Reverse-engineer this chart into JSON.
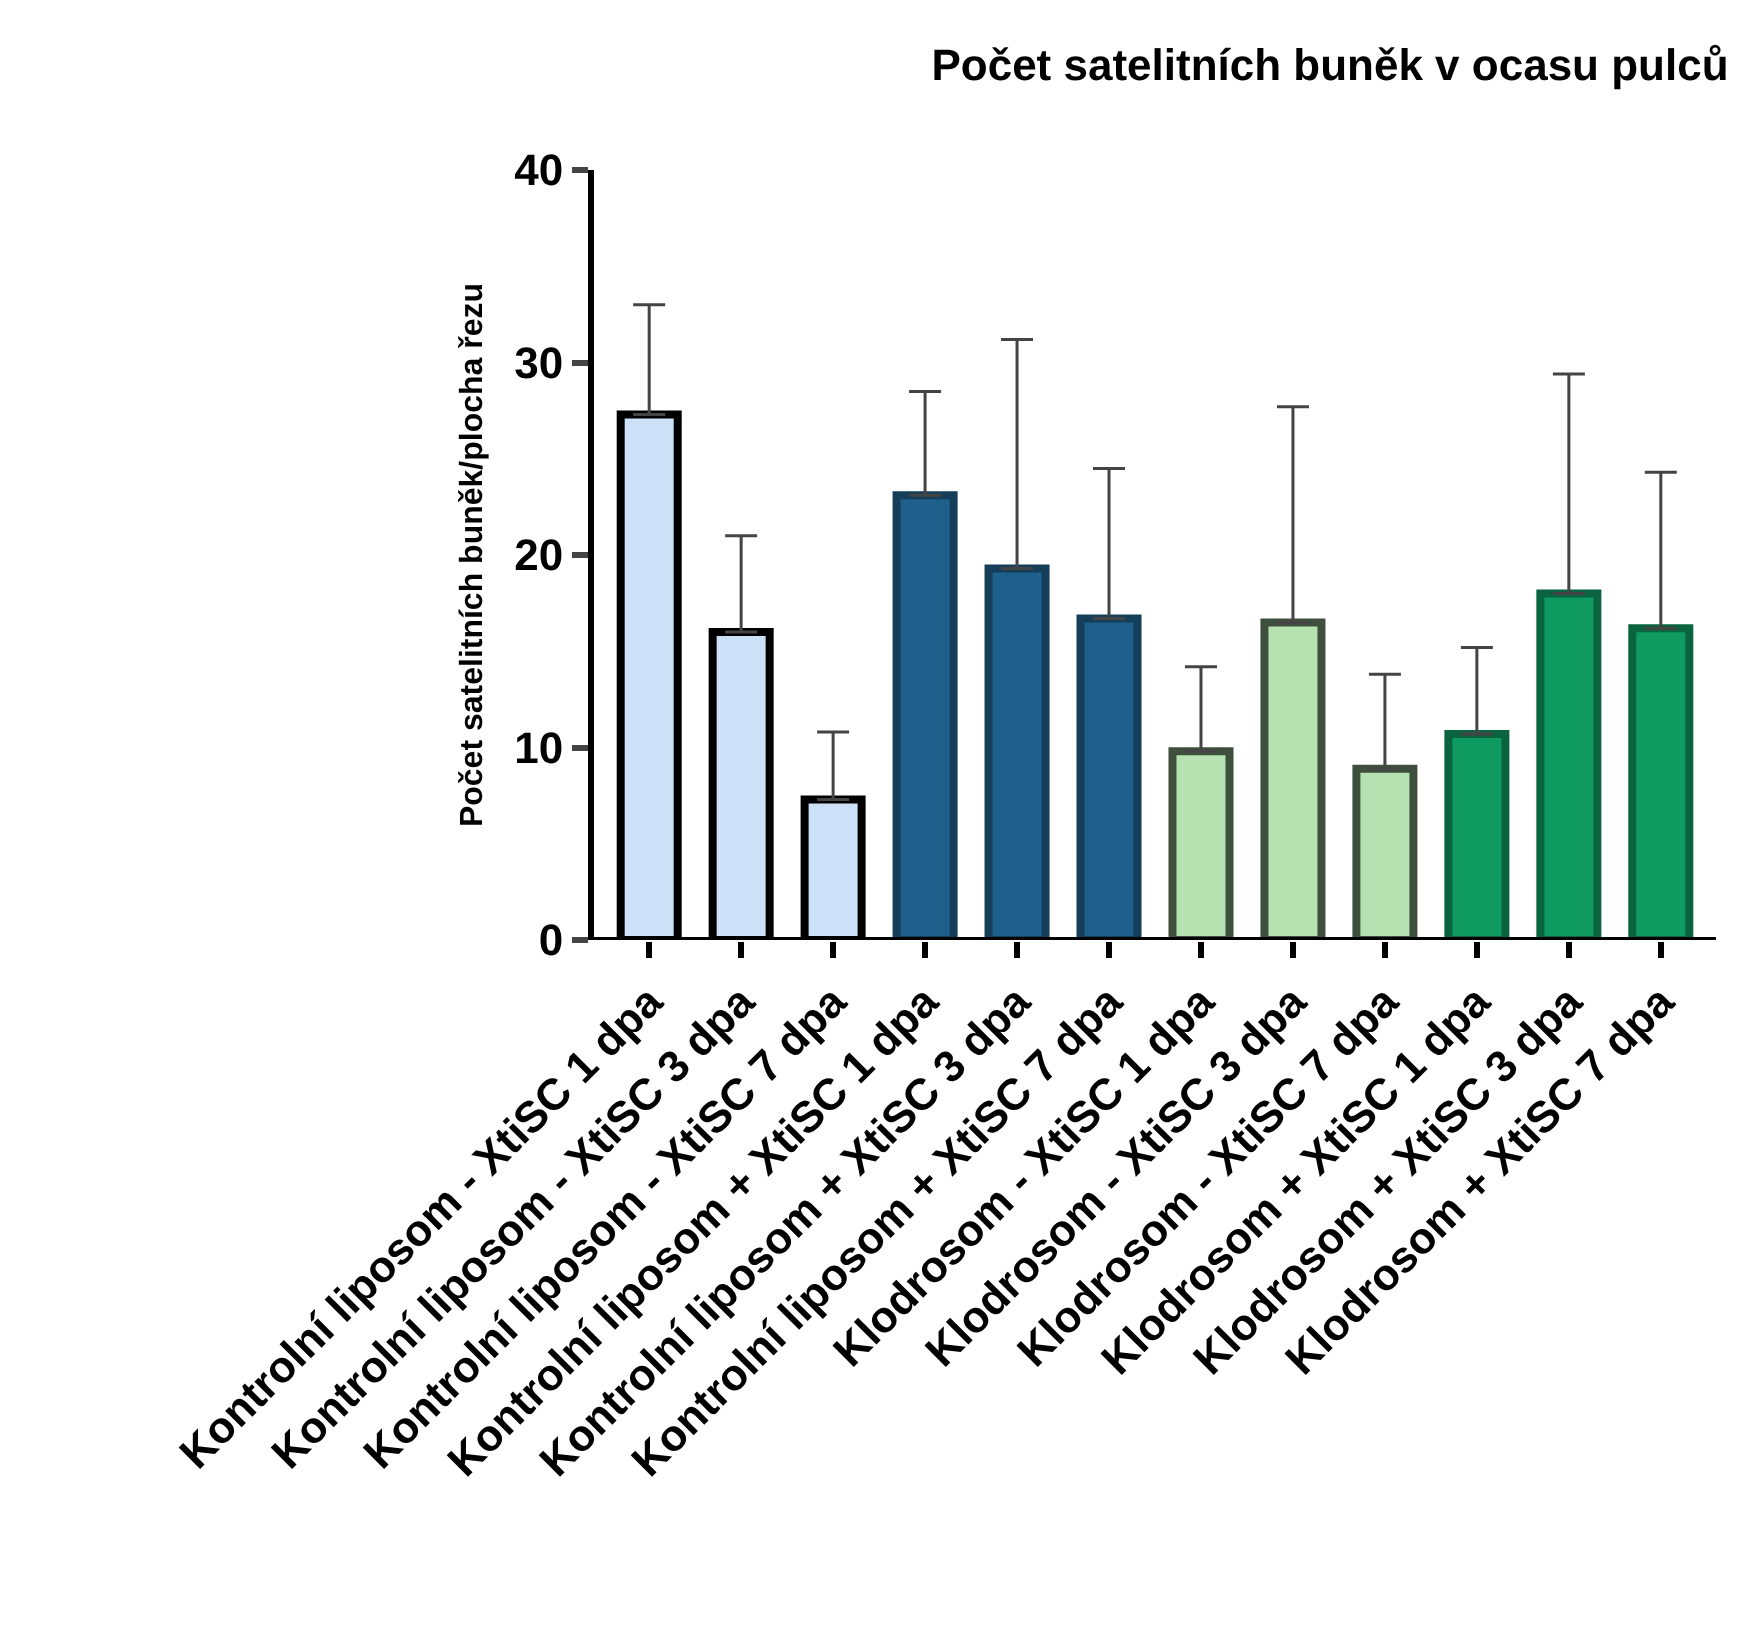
{
  "chart_data": {
    "type": "bar",
    "title": "Počet satelitních buněk v ocasu pulců",
    "ylabel": "Počet satelitních buněk/plocha řezu",
    "categories": [
      "Kontrolní liposom - XtiSC 1 dpa",
      "Kontrolní liposom - XtiSC 3 dpa",
      "Kontrolní liposom - XtiSC 7 dpa",
      "Kontrolní liposom + XtiSC 1 dpa",
      "Kontrolní liposom + XtiSC 3 dpa",
      "Kontrolní liposom + XtiSC 7 dpa",
      "Klodrosom - XtiSC 1 dpa",
      "Klodrosom - XtiSC 3 dpa",
      "Klodrosom - XtiSC 7 dpa",
      "Klodrosom + XtiSC 1 dpa",
      "Klodrosom + XtiSC 3 dpa",
      "Klodrosom + XtiSC 7 dpa"
    ],
    "values": [
      27.3,
      16,
      7.3,
      23.1,
      19.3,
      16.7,
      9.8,
      16.5,
      8.9,
      10.7,
      18,
      16.2
    ],
    "errors": [
      [
        27.3,
        33
      ],
      [
        16,
        21
      ],
      [
        7.3,
        10.8
      ],
      [
        23.1,
        28.5
      ],
      [
        19.3,
        31.2
      ],
      [
        16.7,
        24.5
      ],
      [
        9.8,
        14.2
      ],
      [
        16.5,
        27.7
      ],
      [
        8.9,
        13.8
      ],
      [
        10.7,
        15.2
      ],
      [
        18,
        29.4
      ],
      [
        16.2,
        24.3
      ]
    ],
    "colors": [
      "#cce0f7",
      "#cce0f7",
      "#cce0f7",
      "#1f5f8b",
      "#1f5f8b",
      "#1f5f8b",
      "#b5e2b0",
      "#b5e2b0",
      "#b5e2b0",
      "#0f9a62",
      "#0f9a62",
      "#0f9a62"
    ],
    "ylim": [
      0,
      40
    ],
    "yticks": [
      0,
      10,
      20,
      30,
      40
    ],
    "grid": false
  }
}
